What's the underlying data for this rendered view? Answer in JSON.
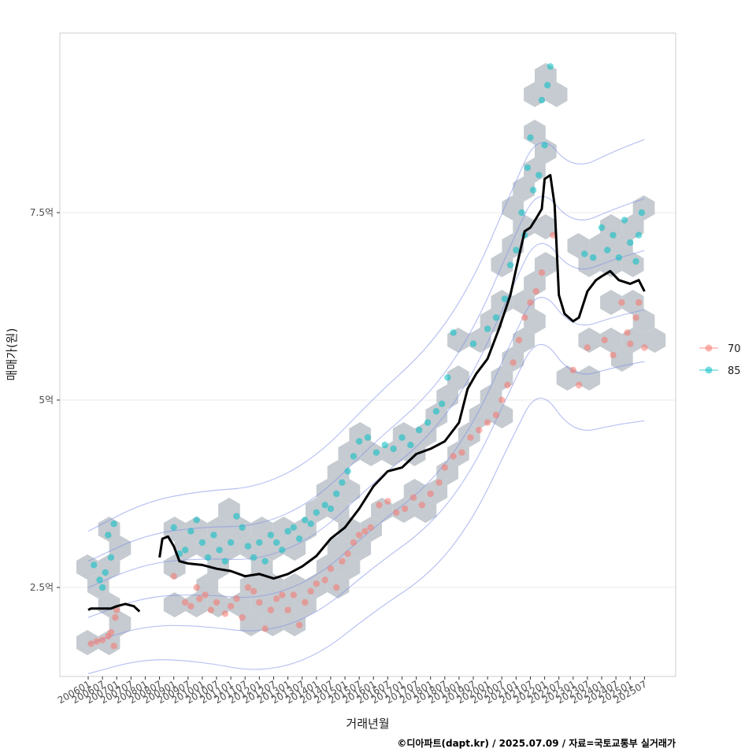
{
  "chart_data": {
    "type": "scatter",
    "title": "",
    "xlabel": "거래년월",
    "ylabel": "매매가(원)",
    "caption": "©디아파트(dapt.kr) / 2025.07.09 / 자료=국토교통부 실거래가",
    "x_range": [
      2006.0,
      2025.6
    ],
    "ylim": [
      1.5,
      9.8
    ],
    "y_ticks": [
      {
        "value": 2.5,
        "label": "2.5억"
      },
      {
        "value": 5.0,
        "label": "5억"
      },
      {
        "value": 7.5,
        "label": "7.5억"
      }
    ],
    "x_ticks": [
      {
        "value": 2006.0,
        "label": "200601"
      },
      {
        "value": 2006.5,
        "label": "200607"
      },
      {
        "value": 2007.0,
        "label": "200701"
      },
      {
        "value": 2007.5,
        "label": "200707"
      },
      {
        "value": 2008.0,
        "label": "200801"
      },
      {
        "value": 2008.5,
        "label": "200807"
      },
      {
        "value": 2009.0,
        "label": "200901"
      },
      {
        "value": 2009.5,
        "label": "200907"
      },
      {
        "value": 2010.0,
        "label": "201001"
      },
      {
        "value": 2010.5,
        "label": "201007"
      },
      {
        "value": 2011.0,
        "label": "201101"
      },
      {
        "value": 2011.5,
        "label": "201107"
      },
      {
        "value": 2012.0,
        "label": "201201"
      },
      {
        "value": 2012.5,
        "label": "201207"
      },
      {
        "value": 2013.0,
        "label": "201301"
      },
      {
        "value": 2013.5,
        "label": "201307"
      },
      {
        "value": 2014.0,
        "label": "201401"
      },
      {
        "value": 2014.5,
        "label": "201407"
      },
      {
        "value": 2015.0,
        "label": "201501"
      },
      {
        "value": 2015.5,
        "label": "201507"
      },
      {
        "value": 2016.0,
        "label": "201601"
      },
      {
        "value": 2016.5,
        "label": "201607"
      },
      {
        "value": 2017.0,
        "label": "201701"
      },
      {
        "value": 2017.5,
        "label": "201707"
      },
      {
        "value": 2018.0,
        "label": "201801"
      },
      {
        "value": 2018.5,
        "label": "201807"
      },
      {
        "value": 2019.0,
        "label": "201901"
      },
      {
        "value": 2019.5,
        "label": "201907"
      },
      {
        "value": 2020.0,
        "label": "202001"
      },
      {
        "value": 2020.5,
        "label": "202007"
      },
      {
        "value": 2021.0,
        "label": "202101"
      },
      {
        "value": 2021.5,
        "label": "202107"
      },
      {
        "value": 2022.0,
        "label": "202201"
      },
      {
        "value": 2022.5,
        "label": "202207"
      },
      {
        "value": 2023.0,
        "label": "202301"
      },
      {
        "value": 2023.5,
        "label": "202307"
      },
      {
        "value": 2024.0,
        "label": "202401"
      },
      {
        "value": 2024.5,
        "label": "202407"
      },
      {
        "value": 2025.0,
        "label": "202501"
      },
      {
        "value": 2025.5,
        "label": "202507"
      }
    ],
    "legend": {
      "position": "right",
      "entries": [
        {
          "label": "70",
          "color": "#F8766D"
        },
        {
          "label": "85",
          "color": "#00BFC4"
        }
      ]
    },
    "series": [
      {
        "name": "70",
        "color": "#F8766D",
        "points": [
          [
            2006.1,
            1.75
          ],
          [
            2006.3,
            1.78
          ],
          [
            2006.5,
            1.8
          ],
          [
            2006.7,
            1.85
          ],
          [
            2006.8,
            1.9
          ],
          [
            2006.9,
            1.72
          ],
          [
            2007.0,
            2.2
          ],
          [
            2006.95,
            2.1
          ],
          [
            2009.0,
            2.65
          ],
          [
            2009.4,
            2.3
          ],
          [
            2009.6,
            2.25
          ],
          [
            2009.8,
            2.5
          ],
          [
            2009.9,
            2.35
          ],
          [
            2010.1,
            2.4
          ],
          [
            2010.3,
            2.2
          ],
          [
            2010.5,
            2.3
          ],
          [
            2010.8,
            2.15
          ],
          [
            2011.0,
            2.25
          ],
          [
            2011.2,
            2.35
          ],
          [
            2011.4,
            2.1
          ],
          [
            2011.6,
            2.5
          ],
          [
            2011.8,
            2.45
          ],
          [
            2012.0,
            2.3
          ],
          [
            2012.2,
            1.95
          ],
          [
            2012.4,
            2.2
          ],
          [
            2012.6,
            2.35
          ],
          [
            2012.8,
            2.4
          ],
          [
            2013.0,
            2.2
          ],
          [
            2013.2,
            2.4
          ],
          [
            2013.4,
            2.0
          ],
          [
            2013.6,
            2.3
          ],
          [
            2013.8,
            2.45
          ],
          [
            2014.0,
            2.55
          ],
          [
            2014.3,
            2.6
          ],
          [
            2014.5,
            2.75
          ],
          [
            2014.7,
            2.5
          ],
          [
            2014.9,
            2.85
          ],
          [
            2015.1,
            2.95
          ],
          [
            2015.3,
            3.1
          ],
          [
            2015.5,
            3.2
          ],
          [
            2015.7,
            3.25
          ],
          [
            2015.9,
            3.3
          ],
          [
            2016.2,
            3.6
          ],
          [
            2016.5,
            3.65
          ],
          [
            2016.8,
            3.5
          ],
          [
            2017.1,
            3.55
          ],
          [
            2017.4,
            3.7
          ],
          [
            2017.7,
            3.6
          ],
          [
            2018.0,
            3.75
          ],
          [
            2018.3,
            3.9
          ],
          [
            2018.5,
            4.1
          ],
          [
            2018.8,
            4.25
          ],
          [
            2019.1,
            4.3
          ],
          [
            2019.4,
            4.5
          ],
          [
            2019.7,
            4.6
          ],
          [
            2020.0,
            4.7
          ],
          [
            2020.3,
            4.8
          ],
          [
            2020.5,
            5.0
          ],
          [
            2020.7,
            5.2
          ],
          [
            2020.9,
            5.5
          ],
          [
            2021.1,
            5.8
          ],
          [
            2021.3,
            6.1
          ],
          [
            2021.5,
            6.3
          ],
          [
            2021.7,
            6.45
          ],
          [
            2021.9,
            6.7
          ],
          [
            2022.3,
            7.2
          ],
          [
            2023.0,
            5.4
          ],
          [
            2023.2,
            5.2
          ],
          [
            2023.5,
            5.7
          ],
          [
            2024.1,
            5.8
          ],
          [
            2024.4,
            5.6
          ],
          [
            2024.9,
            5.9
          ],
          [
            2025.2,
            6.1
          ],
          [
            2025.3,
            6.3
          ],
          [
            2025.5,
            5.7
          ],
          [
            2024.7,
            6.3
          ],
          [
            2025.0,
            5.75
          ]
        ]
      },
      {
        "name": "85",
        "color": "#00BFC4",
        "points": [
          [
            2006.2,
            2.8
          ],
          [
            2006.4,
            2.6
          ],
          [
            2006.6,
            2.7
          ],
          [
            2006.7,
            3.2
          ],
          [
            2006.9,
            3.35
          ],
          [
            2006.5,
            2.5
          ],
          [
            2006.8,
            2.9
          ],
          [
            2009.0,
            3.3
          ],
          [
            2009.2,
            2.95
          ],
          [
            2009.4,
            3.0
          ],
          [
            2009.6,
            3.25
          ],
          [
            2009.8,
            3.4
          ],
          [
            2010.0,
            3.1
          ],
          [
            2010.2,
            2.9
          ],
          [
            2010.4,
            3.2
          ],
          [
            2010.6,
            3.0
          ],
          [
            2010.8,
            2.85
          ],
          [
            2011.0,
            3.1
          ],
          [
            2011.2,
            3.45
          ],
          [
            2011.4,
            3.3
          ],
          [
            2011.6,
            3.05
          ],
          [
            2011.8,
            2.9
          ],
          [
            2012.0,
            3.1
          ],
          [
            2012.2,
            2.85
          ],
          [
            2012.4,
            3.2
          ],
          [
            2012.6,
            3.1
          ],
          [
            2012.8,
            3.0
          ],
          [
            2013.0,
            3.25
          ],
          [
            2013.2,
            3.3
          ],
          [
            2013.4,
            3.15
          ],
          [
            2013.6,
            3.4
          ],
          [
            2013.8,
            3.35
          ],
          [
            2014.0,
            3.5
          ],
          [
            2014.3,
            3.6
          ],
          [
            2014.5,
            3.55
          ],
          [
            2014.7,
            3.75
          ],
          [
            2014.9,
            3.9
          ],
          [
            2015.1,
            4.05
          ],
          [
            2015.3,
            4.25
          ],
          [
            2015.5,
            4.45
          ],
          [
            2015.8,
            4.5
          ],
          [
            2016.1,
            4.3
          ],
          [
            2016.4,
            4.4
          ],
          [
            2016.7,
            4.35
          ],
          [
            2017.0,
            4.5
          ],
          [
            2017.3,
            4.4
          ],
          [
            2017.6,
            4.6
          ],
          [
            2017.9,
            4.7
          ],
          [
            2018.2,
            4.85
          ],
          [
            2018.4,
            4.95
          ],
          [
            2018.6,
            5.3
          ],
          [
            2018.8,
            5.9
          ],
          [
            2019.5,
            5.75
          ],
          [
            2020.0,
            5.95
          ],
          [
            2020.3,
            6.1
          ],
          [
            2020.6,
            6.35
          ],
          [
            2020.8,
            6.8
          ],
          [
            2021.0,
            7.0
          ],
          [
            2021.2,
            7.5
          ],
          [
            2021.4,
            8.1
          ],
          [
            2021.5,
            8.5
          ],
          [
            2021.6,
            7.8
          ],
          [
            2021.8,
            8.0
          ],
          [
            2021.9,
            9.0
          ],
          [
            2022.0,
            8.4
          ],
          [
            2022.1,
            9.2
          ],
          [
            2022.2,
            9.45
          ],
          [
            2021.3,
            7.2
          ],
          [
            2023.4,
            6.95
          ],
          [
            2023.7,
            6.9
          ],
          [
            2024.0,
            7.3
          ],
          [
            2024.2,
            7.0
          ],
          [
            2024.4,
            7.2
          ],
          [
            2024.6,
            6.9
          ],
          [
            2024.8,
            7.4
          ],
          [
            2025.0,
            7.1
          ],
          [
            2025.2,
            6.85
          ],
          [
            2025.4,
            7.5
          ],
          [
            2025.3,
            7.2
          ]
        ]
      }
    ],
    "trend_line": {
      "name": "moving average",
      "color": "#000000",
      "segments": [
        [
          [
            2006.0,
            2.2
          ],
          [
            2006.1,
            2.22
          ],
          [
            2006.5,
            2.22
          ],
          [
            2006.8,
            2.22
          ],
          [
            2007.0,
            2.25
          ],
          [
            2007.3,
            2.28
          ],
          [
            2007.6,
            2.25
          ],
          [
            2007.8,
            2.18
          ]
        ],
        [
          [
            2008.5,
            2.9
          ],
          [
            2008.6,
            3.15
          ],
          [
            2008.8,
            3.18
          ],
          [
            2009.0,
            3.05
          ],
          [
            2009.2,
            2.85
          ],
          [
            2009.5,
            2.82
          ],
          [
            2010.0,
            2.8
          ],
          [
            2010.5,
            2.75
          ],
          [
            2011.0,
            2.72
          ],
          [
            2011.5,
            2.65
          ],
          [
            2012.0,
            2.68
          ],
          [
            2012.5,
            2.62
          ],
          [
            2013.0,
            2.68
          ],
          [
            2013.5,
            2.78
          ],
          [
            2014.0,
            2.92
          ],
          [
            2014.5,
            3.15
          ],
          [
            2015.0,
            3.3
          ],
          [
            2015.5,
            3.55
          ],
          [
            2016.0,
            3.85
          ],
          [
            2016.5,
            4.05
          ],
          [
            2017.0,
            4.1
          ],
          [
            2017.5,
            4.28
          ],
          [
            2018.0,
            4.35
          ],
          [
            2018.5,
            4.45
          ],
          [
            2019.0,
            4.7
          ],
          [
            2019.3,
            5.15
          ],
          [
            2019.6,
            5.35
          ],
          [
            2020.0,
            5.55
          ],
          [
            2020.4,
            5.95
          ],
          [
            2020.8,
            6.4
          ],
          [
            2021.0,
            6.75
          ],
          [
            2021.3,
            7.25
          ],
          [
            2021.5,
            7.3
          ],
          [
            2021.7,
            7.42
          ],
          [
            2021.9,
            7.55
          ],
          [
            2022.0,
            7.95
          ],
          [
            2022.2,
            8.0
          ],
          [
            2022.35,
            7.6
          ],
          [
            2022.5,
            6.4
          ],
          [
            2022.7,
            6.15
          ],
          [
            2023.0,
            6.05
          ],
          [
            2023.2,
            6.1
          ],
          [
            2023.5,
            6.45
          ],
          [
            2023.8,
            6.6
          ],
          [
            2024.0,
            6.65
          ],
          [
            2024.3,
            6.72
          ],
          [
            2024.6,
            6.6
          ],
          [
            2025.0,
            6.55
          ],
          [
            2025.3,
            6.6
          ],
          [
            2025.5,
            6.45
          ]
        ]
      ]
    },
    "density_contours": true,
    "hexbin_background": true
  }
}
